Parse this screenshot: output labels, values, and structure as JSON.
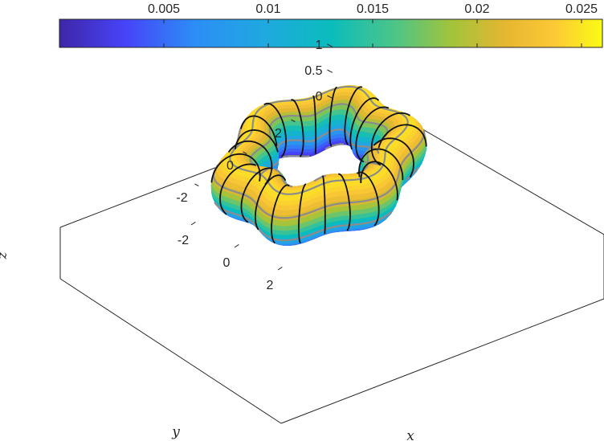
{
  "chart_data": {
    "type": "surface",
    "title": "",
    "shape": "wavy torus with 6 lobes",
    "xlabel": "x",
    "ylabel": "y",
    "zlabel": "z",
    "xlim": [
      -3.5,
      3.5
    ],
    "ylim": [
      -3.5,
      3.5
    ],
    "zlim": [
      0,
      1
    ],
    "x_ticks": [
      "-2",
      "0",
      "2"
    ],
    "y_ticks": [
      "-2",
      "0",
      "2"
    ],
    "z_ticks": [
      "0",
      "0.5",
      "1"
    ],
    "colorbar": {
      "location": "top",
      "colormap": "parula",
      "range": [
        0,
        0.026
      ],
      "ticks": [
        "0.005",
        "0.01",
        "0.015",
        "0.02",
        "0.025"
      ],
      "tick_values": [
        0.005,
        0.01,
        0.015,
        0.02,
        0.025
      ]
    },
    "grid_lines": [
      {
        "name": "meridians",
        "color": "#000000"
      },
      {
        "name": "parallels",
        "color": "#808080"
      }
    ]
  }
}
